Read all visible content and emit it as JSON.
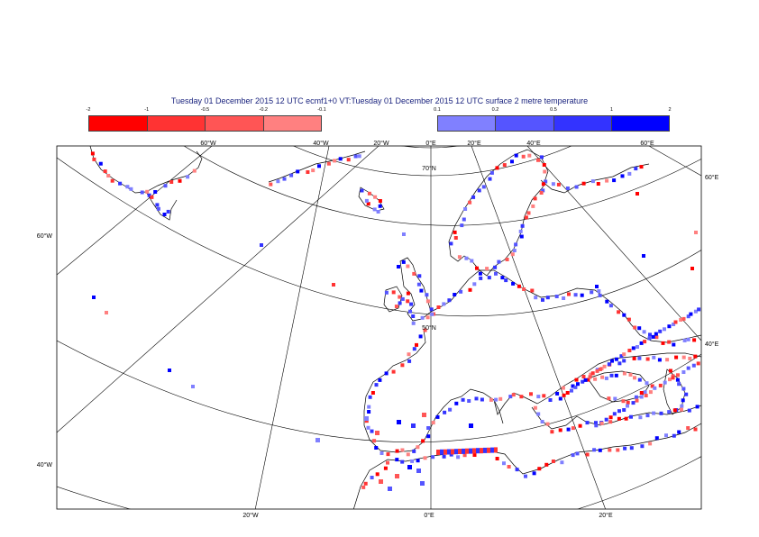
{
  "title": "Tuesday 01 December 2015 12 UTC ecmf1+0 VT:Tuesday 01 December 2015 12 UTC surface  2 metre temperature",
  "legend_negative": {
    "ticks": [
      "-2",
      "-1",
      "-0.5",
      "-0.2",
      "-0.1"
    ],
    "colors": [
      "#ff0000",
      "#ff3333",
      "#ff5555",
      "#ff8080"
    ]
  },
  "legend_positive": {
    "ticks": [
      "0.1",
      "0.2",
      "0.5",
      "1",
      "2"
    ],
    "colors": [
      "#8080ff",
      "#5555ff",
      "#3333ff",
      "#0000ff"
    ]
  },
  "graticule_labels": {
    "top": [
      "60°W",
      "40°W",
      "20°W",
      "0°E",
      "20°E",
      "40°E",
      "60°E"
    ],
    "inner": [
      "70°N",
      "50°N"
    ],
    "left": [
      "60°W",
      "40°W"
    ],
    "right": [
      "60°E",
      "40°E"
    ],
    "bottom": [
      "20°W",
      "0°E",
      "20°E"
    ]
  }
}
